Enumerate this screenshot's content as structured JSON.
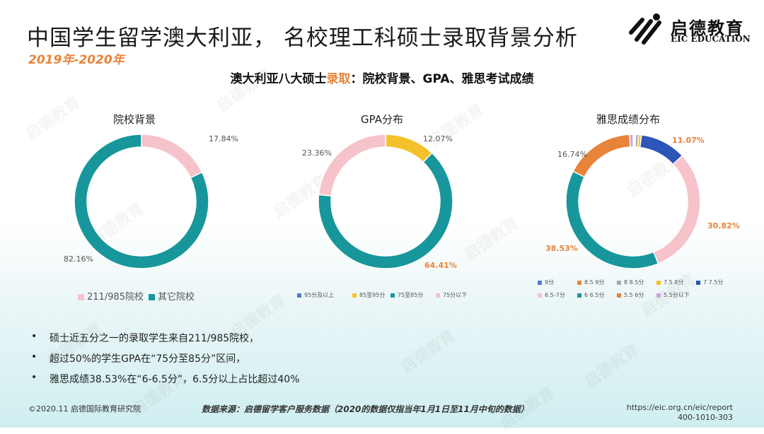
{
  "title": "中国学生留学澳大利亚， 名校理工科硕士录取背景分析",
  "subtitle": "2019年-2020年",
  "logo": {
    "cn": "启德教育",
    "en": "EIC EDUCATION"
  },
  "watermark_text": "启德教育",
  "section_title": {
    "prefix": "澳大利亚八大硕士",
    "highlight": "录取",
    "suffix": "：院校背景、GPA、雅思考试成绩"
  },
  "chart_data": [
    {
      "type": "pie",
      "donut": true,
      "title": "院校背景",
      "series": [
        {
          "name": "211/985院校",
          "value": 17.84,
          "color": "#f6c3cb"
        },
        {
          "name": "其它院校",
          "value": 82.16,
          "color": "#17979b"
        }
      ],
      "labels": [
        {
          "text": "17.84%",
          "series": 0,
          "color": "#555555",
          "bold": false
        },
        {
          "text": "82.16%",
          "series": 1,
          "color": "#555555",
          "bold": false
        }
      ],
      "legend_position": "bottom"
    },
    {
      "type": "pie",
      "donut": true,
      "title": "GPA分布",
      "series": [
        {
          "name": "95分及以上",
          "value": 0.08,
          "color": "#4e7bd1"
        },
        {
          "name": "85至95分",
          "value": 12.07,
          "color": "#f5c12a"
        },
        {
          "name": "75至85分",
          "value": 64.41,
          "color": "#17979b"
        },
        {
          "name": "75分以下",
          "value": 23.36,
          "color": "#f6c3cb"
        }
      ],
      "labels": [
        {
          "text": "12.07%",
          "series": 1,
          "color": "#555555",
          "bold": false
        },
        {
          "text": "64.41%",
          "series": 2,
          "color": "#e8833a",
          "bold": true
        },
        {
          "text": "23.36%",
          "series": 3,
          "color": "#555555",
          "bold": false
        }
      ],
      "legend_position": "bottom"
    },
    {
      "type": "pie",
      "donut": true,
      "title": "雅思成绩分布",
      "series": [
        {
          "name": "9分",
          "value": 0.3,
          "color": "#4e7bd1"
        },
        {
          "name": "8.5 9分",
          "value": 0.3,
          "color": "#e8833a"
        },
        {
          "name": "8 8.5分",
          "value": 0.7,
          "color": "#a9a9a9"
        },
        {
          "name": "7.5 8分",
          "value": 0.7,
          "color": "#f5c12a"
        },
        {
          "name": "7 7.5分",
          "value": 11.07,
          "color": "#2e55b8"
        },
        {
          "name": "6.5-7分",
          "value": 30.82,
          "color": "#f6c3cb"
        },
        {
          "name": "6 6.5分",
          "value": 38.53,
          "color": "#17979b"
        },
        {
          "name": "5.5 6分",
          "value": 16.74,
          "color": "#e8833a"
        },
        {
          "name": "5.5分以下",
          "value": 0.84,
          "color": "#c7a9d8"
        }
      ],
      "labels": [
        {
          "text": "11.07%",
          "series": 4,
          "color": "#e8833a",
          "bold": true
        },
        {
          "text": "30.82%",
          "series": 5,
          "color": "#e8833a",
          "bold": true
        },
        {
          "text": "38.53%",
          "series": 6,
          "color": "#e8833a",
          "bold": true
        },
        {
          "text": "16.74%",
          "series": 7,
          "color": "#555555",
          "bold": false
        }
      ],
      "legend_position": "bottom"
    }
  ],
  "bullets": [
    "硕士近五分之一的录取学生来自211/985院校，",
    "超过50%的学生GPA在“75分至85分”区间，",
    "雅思成绩38.53%在“6-6.5分”，6.5分以上占比超过40%"
  ],
  "bullet_marker": "•",
  "footer": {
    "left": "©2020.11 启德国际教育研究院",
    "source": "数据来源：启德留学客户服务数据（2020的数据仅指当年1月1日至11月中旬的数据）",
    "url": "https://eic.org.cn/eic/report",
    "phone": "400-1010-303"
  }
}
